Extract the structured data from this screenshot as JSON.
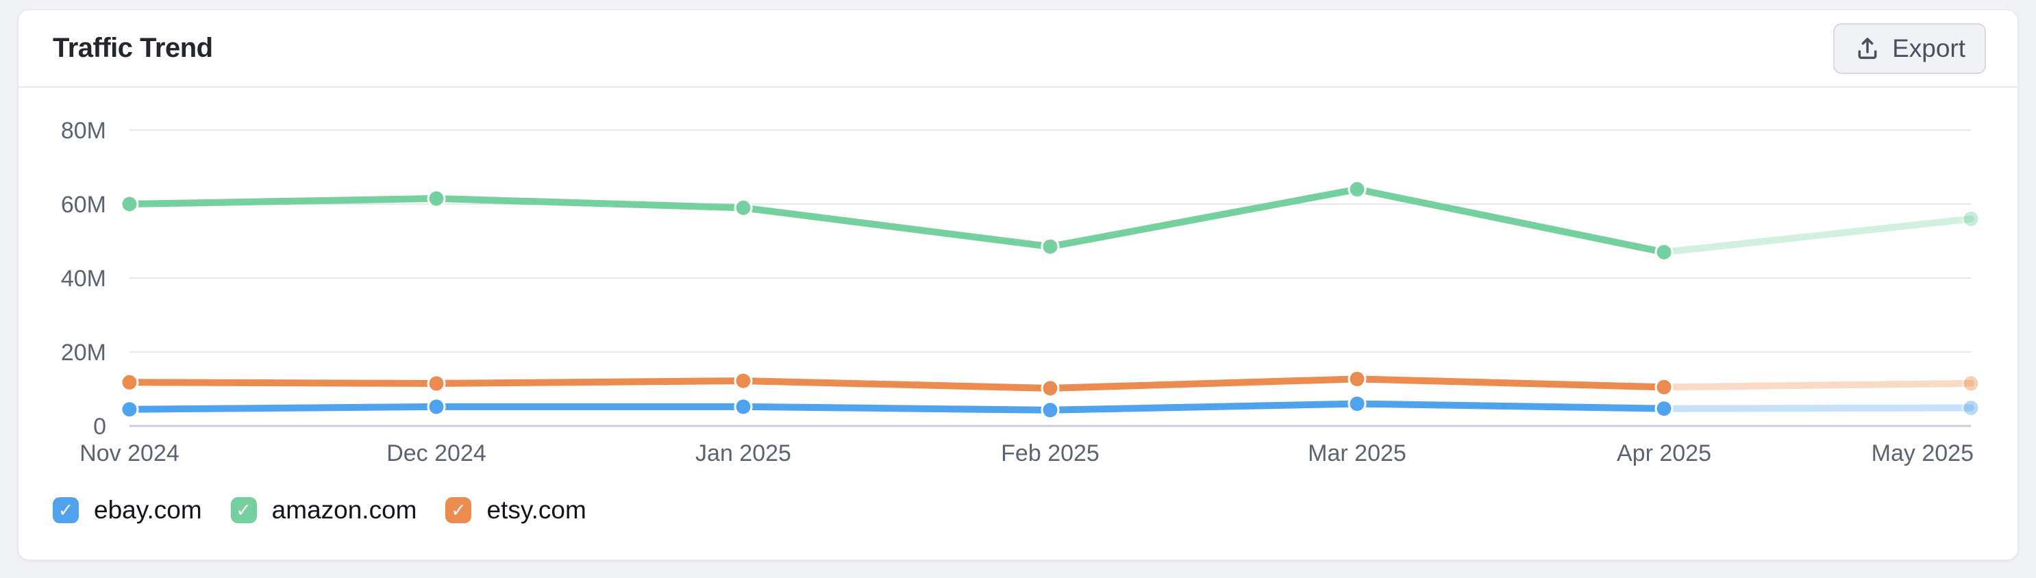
{
  "header": {
    "title": "Traffic Trend",
    "export_label": "Export"
  },
  "chart_data": {
    "type": "line",
    "title": "Traffic Trend",
    "x": [
      "Nov 2024",
      "Dec 2024",
      "Jan 2025",
      "Feb 2025",
      "Mar 2025",
      "Apr 2025",
      "May 2025"
    ],
    "series": [
      {
        "name": "ebay.com",
        "color": "#4FA3EE",
        "values": [
          4.5,
          5.2,
          5.2,
          4.3,
          6.0,
          4.7,
          4.9
        ]
      },
      {
        "name": "amazon.com",
        "color": "#74D09E",
        "values": [
          60.0,
          61.5,
          59.0,
          48.5,
          64.0,
          47.0,
          56.0
        ]
      },
      {
        "name": "etsy.com",
        "color": "#EC8B4F",
        "values": [
          11.8,
          11.5,
          12.2,
          10.2,
          12.7,
          10.5,
          11.5
        ]
      }
    ],
    "unit": "M visits",
    "xlabel": "",
    "ylabel": "",
    "yticks": [
      "80M",
      "60M",
      "40M",
      "20M",
      "0"
    ],
    "ytick_values": [
      80,
      60,
      40,
      20,
      0
    ],
    "ylim": [
      0,
      88
    ],
    "grid": true,
    "legend_position": "bottom",
    "faded_last_segment": true
  },
  "legend": {
    "check_glyph": "✓",
    "items": [
      {
        "label": "ebay.com",
        "color": "#4FA3EE",
        "checked": true
      },
      {
        "label": "amazon.com",
        "color": "#74D09E",
        "checked": true
      },
      {
        "label": "etsy.com",
        "color": "#EC8B4F",
        "checked": true
      }
    ]
  }
}
